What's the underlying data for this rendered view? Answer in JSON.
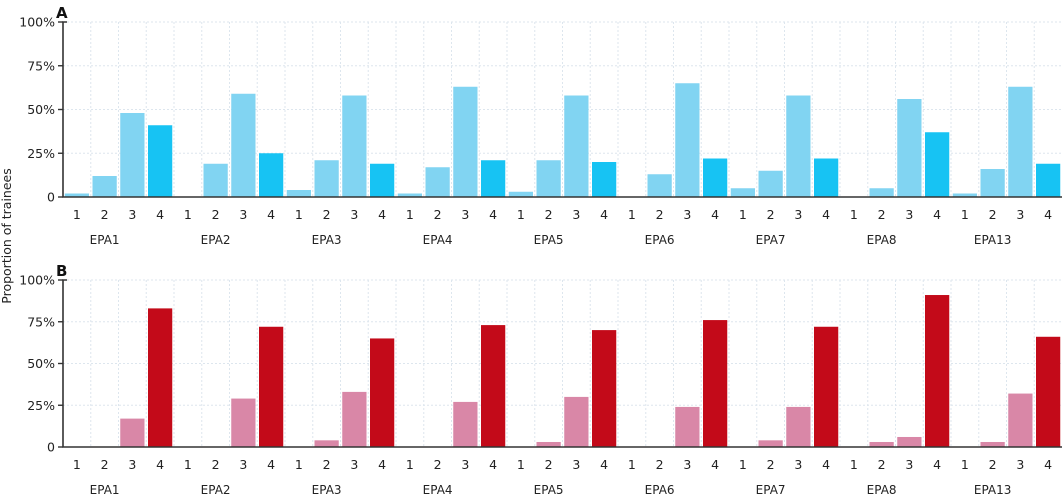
{
  "ylabel": "Proportion of trainees",
  "chart_data": [
    {
      "type": "bar",
      "panel_label": "A",
      "title": "",
      "xlabel": "",
      "ylabel": "Proportion of trainees",
      "ylim": [
        0,
        100
      ],
      "yticks": [
        0,
        25,
        50,
        75,
        100
      ],
      "ytick_labels": [
        "0",
        "25%",
        "50%",
        "75%",
        "100%"
      ],
      "grid": true,
      "groups": [
        "EPA1",
        "EPA2",
        "EPA3",
        "EPA4",
        "EPA5",
        "EPA6",
        "EPA7",
        "EPA8",
        "EPA13"
      ],
      "categories": [
        "1",
        "2",
        "3",
        "4"
      ],
      "colors": {
        "1": "#81d4f2",
        "2": "#81d4f2",
        "3": "#81d4f2",
        "4": "#17c3f3"
      },
      "values": [
        [
          2,
          12,
          48,
          41
        ],
        [
          0,
          19,
          59,
          25
        ],
        [
          4,
          21,
          58,
          19
        ],
        [
          2,
          17,
          63,
          21
        ],
        [
          3,
          21,
          58,
          20
        ],
        [
          0,
          13,
          65,
          22
        ],
        [
          5,
          15,
          58,
          22
        ],
        [
          0,
          5,
          56,
          37
        ],
        [
          2,
          16,
          63,
          19
        ]
      ]
    },
    {
      "type": "bar",
      "panel_label": "B",
      "title": "",
      "xlabel": "",
      "ylabel": "Proportion of trainees",
      "ylim": [
        0,
        100
      ],
      "yticks": [
        0,
        25,
        50,
        75,
        100
      ],
      "ytick_labels": [
        "0",
        "25%",
        "50%",
        "75%",
        "100%"
      ],
      "grid": true,
      "groups": [
        "EPA1",
        "EPA2",
        "EPA3",
        "EPA4",
        "EPA5",
        "EPA6",
        "EPA7",
        "EPA8",
        "EPA13"
      ],
      "categories": [
        "1",
        "2",
        "3",
        "4"
      ],
      "colors": {
        "1": "#d987a7",
        "2": "#d987a7",
        "3": "#d987a7",
        "4": "#c30a19"
      },
      "values": [
        [
          0,
          0,
          17,
          83
        ],
        [
          0,
          0,
          29,
          72
        ],
        [
          0,
          4,
          33,
          65
        ],
        [
          0,
          0,
          27,
          73
        ],
        [
          0,
          3,
          30,
          70
        ],
        [
          0,
          0,
          24,
          76
        ],
        [
          0,
          4,
          24,
          72
        ],
        [
          0,
          3,
          6,
          91
        ],
        [
          0,
          3,
          32,
          66
        ]
      ]
    }
  ]
}
